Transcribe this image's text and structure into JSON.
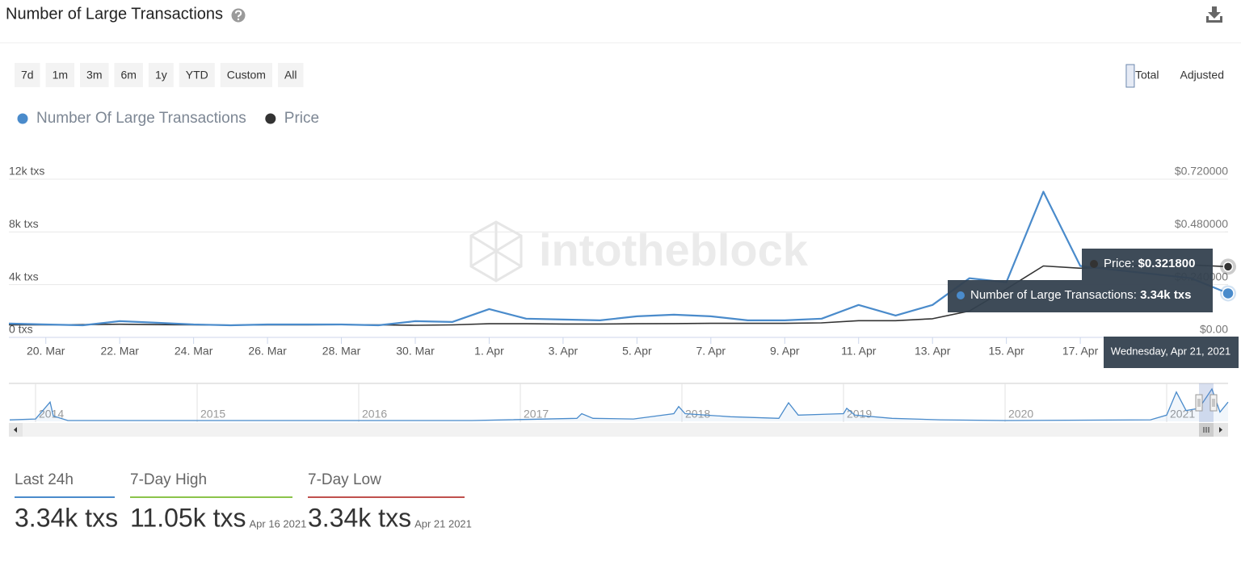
{
  "header": {
    "title": "Number of Large Transactions"
  },
  "range_buttons": [
    "7d",
    "1m",
    "3m",
    "6m",
    "1y",
    "YTD",
    "Custom",
    "All"
  ],
  "mode_buttons": [
    "Total",
    "Adjusted"
  ],
  "active_mode": 0,
  "chart_data": {
    "type": "line",
    "watermark": "intotheblock",
    "categories": [
      null,
      "20. Mar",
      null,
      "22. Mar",
      null,
      "24. Mar",
      null,
      "26. Mar",
      null,
      "28. Mar",
      null,
      "30. Mar",
      null,
      "1. Apr",
      null,
      "3. Apr",
      null,
      "5. Apr",
      null,
      "7. Apr",
      null,
      "9. Apr",
      null,
      "11. Apr",
      null,
      "13. Apr",
      null,
      "15. Apr",
      null,
      "17. Apr",
      null,
      null,
      null,
      null
    ],
    "series": [
      {
        "name": "Number Of Large Transactions",
        "color": "#4a8bcb",
        "values": [
          1050,
          980,
          920,
          1230,
          1110,
          980,
          920,
          980,
          980,
          980,
          920,
          1230,
          1170,
          2150,
          1420,
          1350,
          1290,
          1600,
          1720,
          1600,
          1290,
          1290,
          1420,
          2460,
          1660,
          2460,
          4490,
          4180,
          11050,
          5420,
          5100,
          4800,
          4490,
          3340
        ]
      },
      {
        "name": "Price",
        "color": "#333333",
        "axis": "y2",
        "values": [
          0.057,
          0.057,
          0.058,
          0.06,
          0.058,
          0.057,
          0.056,
          0.057,
          0.057,
          0.058,
          0.057,
          0.055,
          0.057,
          0.062,
          0.062,
          0.061,
          0.061,
          0.062,
          0.063,
          0.064,
          0.064,
          0.064,
          0.066,
          0.076,
          0.076,
          0.085,
          0.12,
          0.22,
          0.325,
          0.315,
          0.32,
          0.33,
          0.33,
          0.3218
        ]
      }
    ],
    "ylim": [
      0,
      12000
    ],
    "yticks": [
      {
        "value": 0,
        "label": "0 txs"
      },
      {
        "value": 4000,
        "label": "4k txs"
      },
      {
        "value": 8000,
        "label": "8k txs"
      },
      {
        "value": 12000,
        "label": "12k txs"
      }
    ],
    "y2lim": [
      0,
      0.72
    ],
    "y2ticks": [
      {
        "value": 0,
        "label": "$0.00"
      },
      {
        "value": 0.24,
        "label": "$0.240000"
      },
      {
        "value": 0.48,
        "label": "$0.480000"
      },
      {
        "value": 0.72,
        "label": "$0.720000"
      }
    ],
    "grid": true,
    "tooltip": {
      "price_label": "Price: ",
      "price_value": "$0.321800",
      "count_label": "Number of Large Transactions: ",
      "count_value": "3.34k txs",
      "date": "Wednesday, Apr 21, 2021"
    },
    "navigator": {
      "color": "#4a8bcb",
      "x": [
        2013.84,
        2014.0,
        2014.09,
        2014.11,
        2014.2,
        2015.0,
        2016.0,
        2016.7,
        2017.35,
        2017.38,
        2017.45,
        2017.7,
        2017.95,
        2017.98,
        2018.02,
        2018.3,
        2018.6,
        2018.66,
        2018.72,
        2019.0,
        2019.02,
        2019.07,
        2019.3,
        2019.6,
        2020.0,
        2020.9,
        2021.0,
        2021.06,
        2021.12,
        2021.2,
        2021.28,
        2021.33,
        2021.38
      ],
      "values": [
        500,
        800,
        6500,
        1800,
        260,
        260,
        260,
        260,
        1000,
        2600,
        1000,
        800,
        2600,
        5000,
        2600,
        1560,
        1000,
        6260,
        2100,
        2600,
        4400,
        2100,
        1000,
        520,
        260,
        520,
        2100,
        9900,
        3650,
        4400,
        10950,
        3130,
        6500
      ],
      "xlim": [
        2013.835,
        2021.38
      ],
      "ylim": [
        0,
        12000
      ],
      "xticks": [
        2014,
        2015,
        2016,
        2017,
        2018,
        2019,
        2020,
        2021
      ]
    }
  },
  "stats": [
    {
      "label": "Last 24h",
      "value": "3.34k txs",
      "color": "#4a8bcb"
    },
    {
      "label": "7-Day High",
      "value": "11.05k txs",
      "date": "Apr 16 2021",
      "color": "#8bc34a"
    },
    {
      "label": "7-Day Low",
      "value": "3.34k txs",
      "date": "Apr 21 2021",
      "color": "#c0504d"
    }
  ]
}
